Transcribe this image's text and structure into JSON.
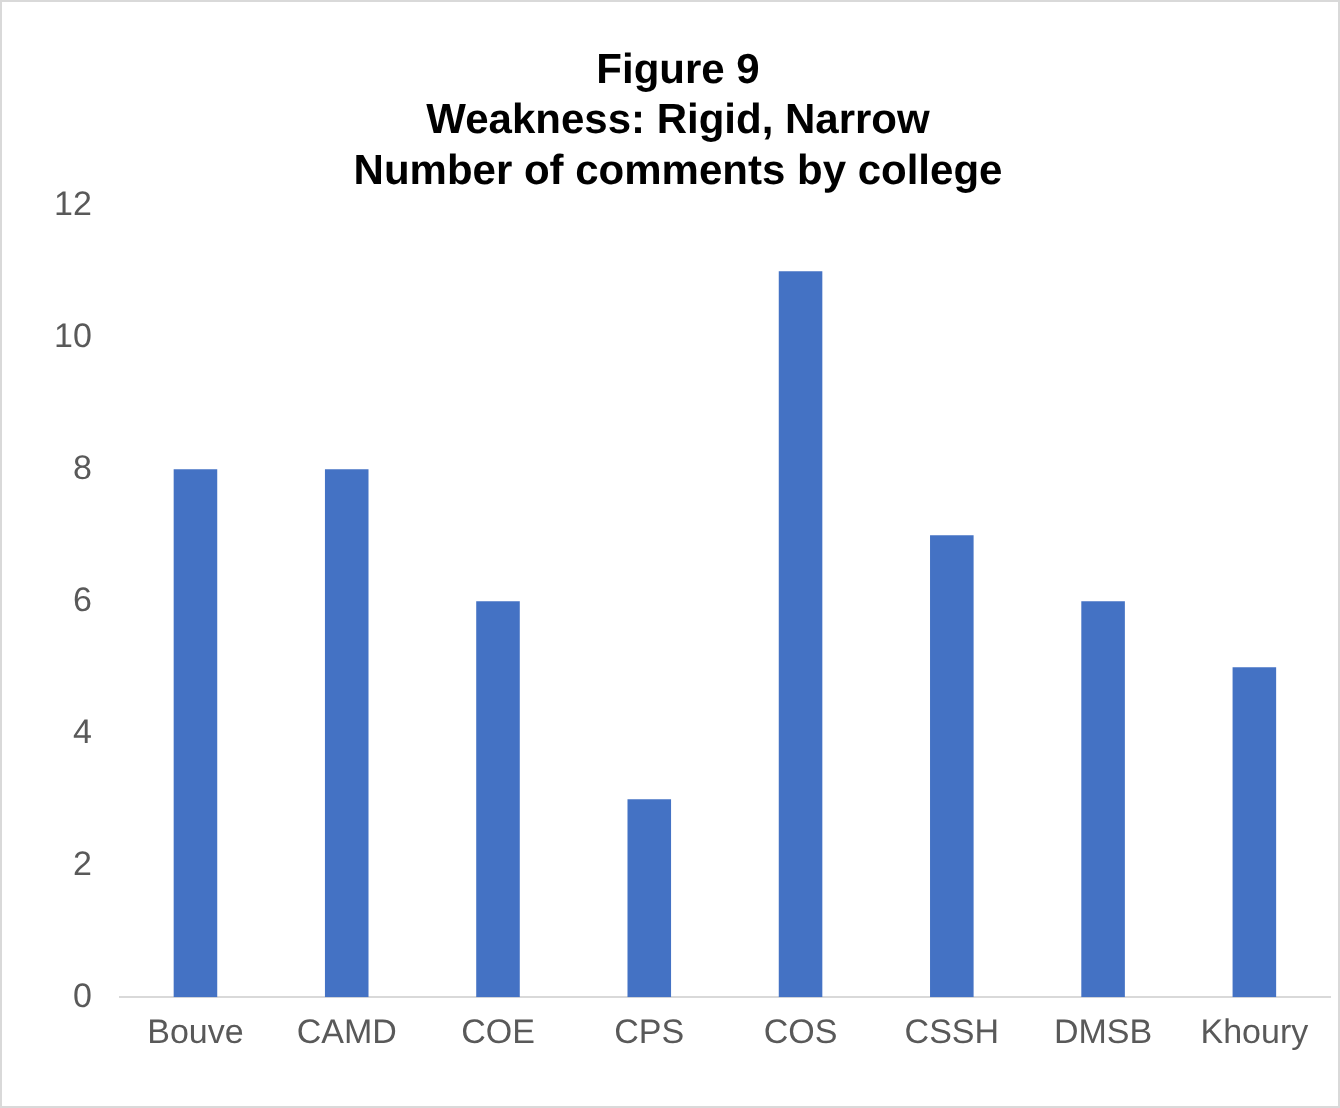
{
  "chart_data": {
    "type": "bar",
    "title": "Figure 9\nWeakness: Rigid, Narrow\nNumber of comments by college",
    "categories": [
      "Bouve",
      "CAMD",
      "COE",
      "CPS",
      "COS",
      "CSSH",
      "DMSB",
      "Khoury"
    ],
    "values": [
      8,
      8,
      6,
      3,
      11,
      7,
      6,
      5
    ],
    "color": "#4472c4",
    "ylim": [
      0,
      12
    ],
    "yticks": [
      0,
      2,
      4,
      6,
      8,
      10,
      12
    ],
    "grid": false,
    "legend": false
  }
}
